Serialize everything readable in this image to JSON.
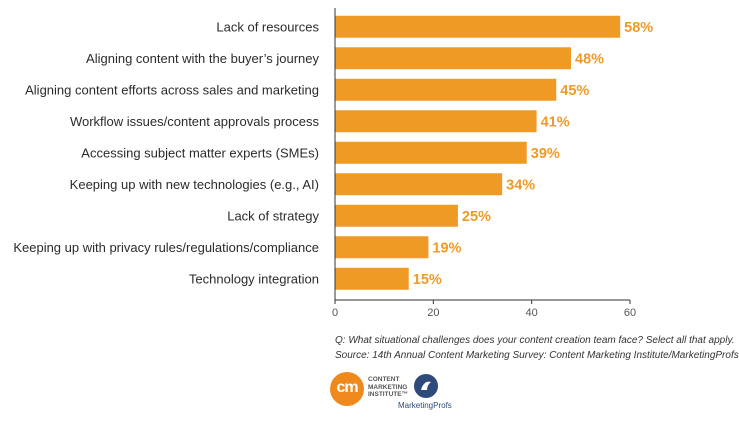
{
  "chart_data": {
    "type": "bar",
    "orientation": "horizontal",
    "categories": [
      "Lack of resources",
      "Aligning content with the buyer’s journey",
      "Aligning content efforts across sales and marketing",
      "Workflow issues/content approvals process",
      "Accessing subject matter experts (SMEs)",
      "Keeping up with new technologies (e.g., AI)",
      "Lack of strategy",
      "Keeping up with privacy rules/regulations/compliance",
      "Technology integration"
    ],
    "values": [
      58,
      48,
      45,
      41,
      39,
      34,
      25,
      19,
      15
    ],
    "value_labels": [
      "58%",
      "48%",
      "45%",
      "41%",
      "39%",
      "34%",
      "25%",
      "19%",
      "15%"
    ],
    "xlim": [
      0,
      60
    ],
    "xticks": [
      0,
      20,
      40,
      60
    ],
    "xlabel": "",
    "ylabel": "",
    "grid": false,
    "colors": {
      "bar": "#F09A26",
      "label": "#F09A26",
      "axis": "#333333"
    }
  },
  "notes": {
    "question": "Q: What situational challenges does your content creation team face? Select all that apply.",
    "source": "Source: 14th Annual Content Marketing Survey: Content Marketing Institute/MarketingProfs"
  },
  "logos": {
    "cmi_mark": "cm",
    "cmi_line1": "CONTENT",
    "cmi_line2": "MARKETING",
    "cmi_line3": "INSTITUTE™",
    "mp_name": "MarketingProfs"
  }
}
